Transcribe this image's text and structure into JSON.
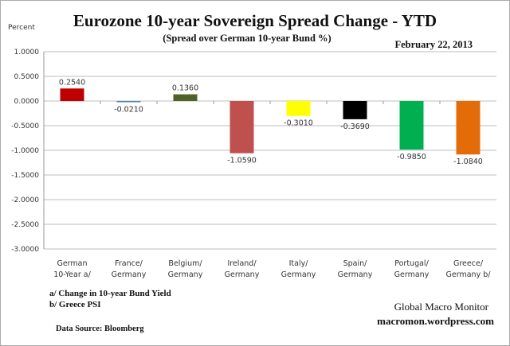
{
  "chart_data": {
    "type": "bar",
    "title": "Eurozone 10-year Sovereign Spread Change - YTD",
    "subtitle": "(Spread over German 10-year Bund %)",
    "date": "February 22,  2013",
    "ylabel": "Percent",
    "xlabel": "",
    "ylim": [
      -3.0,
      1.0
    ],
    "yticks": [
      1.0,
      0.5,
      0.0,
      -0.5,
      -1.0,
      -1.5,
      -2.0,
      -2.5,
      -3.0
    ],
    "ytick_labels": [
      "1.0000",
      "0.5000",
      "0.0000",
      "-0.5000",
      "-1.0000",
      "-1.5000",
      "-2.0000",
      "-2.5000",
      "-3.0000"
    ],
    "grid": true,
    "categories": [
      [
        "German",
        "10-Year a/"
      ],
      [
        "France/",
        "Germany"
      ],
      [
        "Belgium/",
        "Germany"
      ],
      [
        "Ireland/",
        "Germany"
      ],
      [
        "Italy/",
        "Germany"
      ],
      [
        "Spain/",
        "Germany"
      ],
      [
        "Portugal/",
        "Germany"
      ],
      [
        "Greece/",
        "Germany b/"
      ]
    ],
    "values": [
      0.254,
      -0.021,
      0.136,
      -1.059,
      -0.301,
      -0.369,
      -0.985,
      -1.084
    ],
    "data_labels": [
      "0.2540",
      "-0.0210",
      "0.1360",
      "-1.0590",
      "-0.3010",
      "-0.3690",
      "-0.9850",
      "-1.0840"
    ],
    "colors": [
      "#c00000",
      "#4f81bd",
      "#4f6228",
      "#c0504d",
      "#ffff00",
      "#000000",
      "#00b050",
      "#e36c09"
    ],
    "notes": [
      "a/  Change in 10-year Bund Yield",
      "b/  Greece PSI"
    ],
    "source": "Data Source:  Bloomberg",
    "branding": [
      "Global Macro Monitor",
      "macromon.wordpress.com"
    ]
  }
}
